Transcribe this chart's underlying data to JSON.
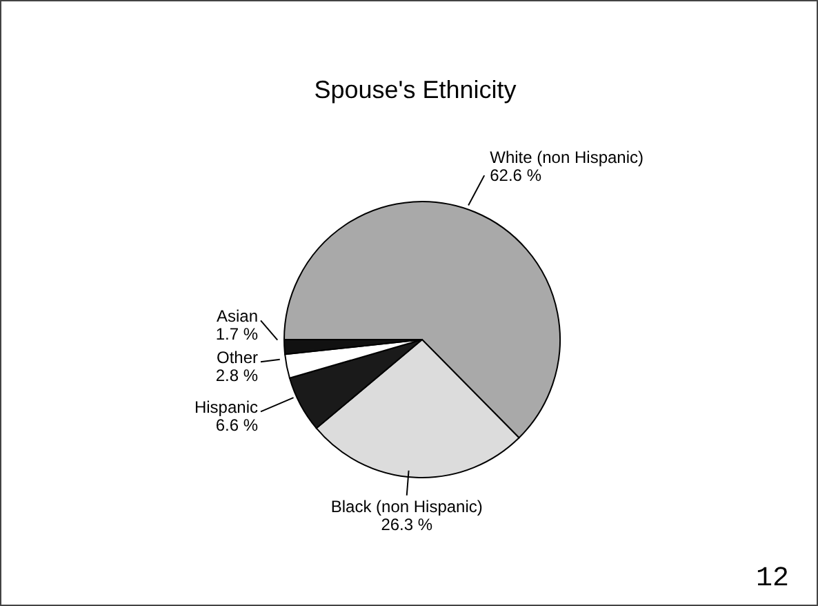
{
  "chart_data": {
    "type": "pie",
    "title": "Spouse's  Ethnicity",
    "categories": [
      "White (non Hispanic)",
      "Black (non Hispanic)",
      "Hispanic",
      "Other",
      "Asian"
    ],
    "values": [
      62.6,
      26.3,
      6.6,
      2.8,
      1.7
    ],
    "value_labels": [
      "62.6 %",
      "26.3 %",
      "6.6 %",
      "2.8 %",
      "1.7 %"
    ],
    "colors": [
      "#a9a9a9",
      "#dcdcdc",
      "#1a1a1a",
      "#ffffff",
      "#111111"
    ],
    "annotations": [
      "12"
    ]
  }
}
